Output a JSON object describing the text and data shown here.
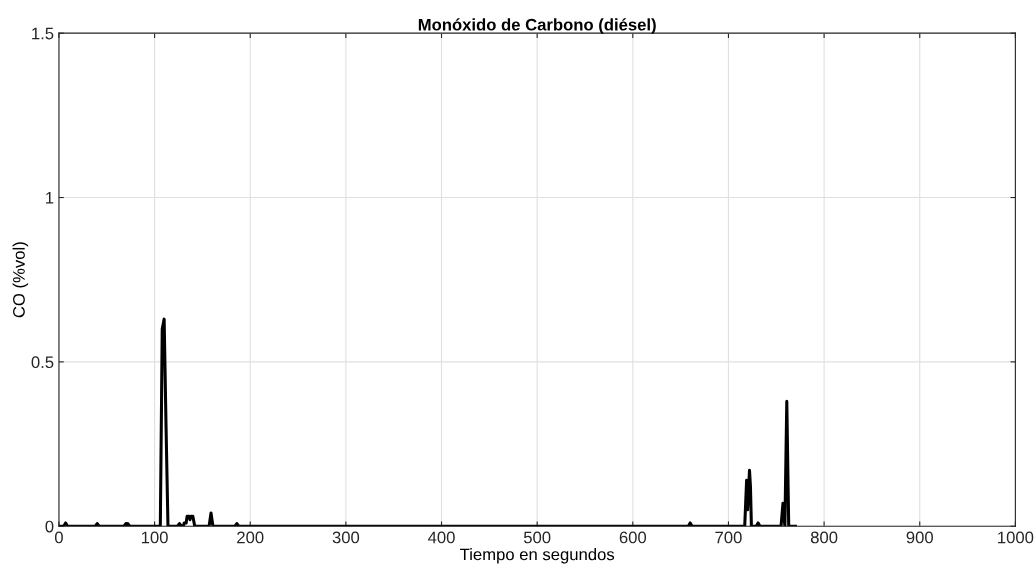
{
  "chart_data": {
    "type": "line",
    "title": "Monóxido de Carbono (diésel)",
    "xlabel": "Tiempo en segundos",
    "ylabel": "CO (%vol)",
    "x": [
      0,
      5,
      7,
      9,
      38,
      40,
      42,
      68,
      70,
      71,
      72,
      74,
      106,
      108,
      110,
      112,
      114,
      124,
      126,
      128,
      130,
      131,
      133,
      134,
      136,
      137,
      138,
      140,
      142,
      157,
      159,
      161,
      184,
      186,
      188,
      658,
      660,
      662,
      717,
      719,
      720,
      722,
      723,
      724,
      729,
      731,
      733,
      755,
      757,
      759,
      761,
      763,
      765,
      770
    ],
    "series": [
      {
        "color": "#000000",
        "values": [
          0,
          0,
          0.01,
          0,
          0,
          0.008,
          0,
          0,
          0.008,
          0,
          0.008,
          0,
          0,
          0.6,
          0.63,
          0.3,
          0,
          0,
          0.008,
          0,
          0,
          0.01,
          0.01,
          0.03,
          0.03,
          0.02,
          0.03,
          0.03,
          0,
          0,
          0.04,
          0,
          0,
          0.008,
          0,
          0,
          0.01,
          0,
          0,
          0.14,
          0.05,
          0.17,
          0.12,
          0,
          0,
          0.01,
          0,
          0,
          0.07,
          0,
          0.38,
          0,
          0,
          0
        ]
      }
    ],
    "xlim": [
      0,
      1000
    ],
    "ylim": [
      0,
      1.5
    ],
    "xticks": [
      0,
      100,
      200,
      300,
      400,
      500,
      600,
      700,
      800,
      900,
      1000
    ],
    "yticks": [
      0,
      0.5,
      1,
      1.5
    ],
    "grid": true,
    "marker": "none",
    "line_style": "solid"
  }
}
